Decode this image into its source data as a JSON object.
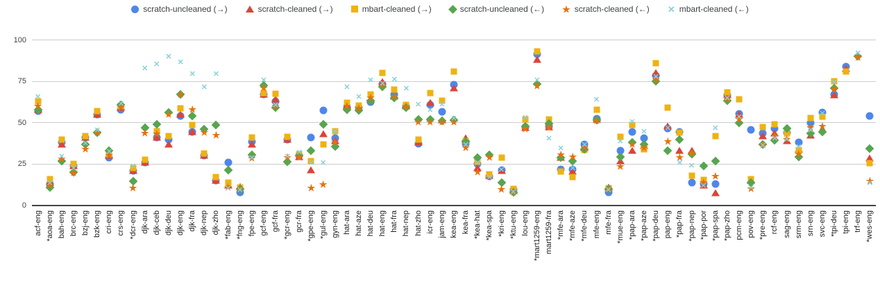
{
  "chart_data": {
    "type": "scatter",
    "title": "",
    "xlabel": "",
    "ylabel": "",
    "ylim": [
      0,
      100
    ],
    "yticks": [
      0,
      25,
      50,
      75,
      100
    ],
    "grid": true,
    "legend_position": "top",
    "categories": [
      "acf-eng",
      "*aoa-eng",
      "bah-eng",
      "brc-eng",
      "bzj-eng",
      "bzk-eng",
      "cri-eng",
      "crs-eng",
      "*dcr-eng",
      "djk-ara",
      "djk-ceb",
      "djk-deu",
      "djk-eng",
      "djk-fra",
      "djk-nep",
      "djk-zho",
      "*fab-eng",
      "*fng-eng",
      "fpe-eng",
      "gcf-eng",
      "gcf-fra",
      "*gcr-eng",
      "gcr-fra",
      "*gpe-eng",
      "*gul-eng",
      "gyn-eng",
      "hat-ara",
      "hat-aze",
      "hat-deu",
      "hat-eng",
      "hat-fra",
      "hat-nep",
      "hat-zho",
      "icr-eng",
      "jam-eng",
      "kea-eng",
      "kea-fra",
      "*kea-hat",
      "*kea-spa",
      "*kri-eng",
      "*ktu-eng",
      "lou-eng",
      "*mart1259-eng",
      "mart1259-fra",
      "*mfe-ara",
      "*mfe-aze",
      "*mfe-deu",
      "mfe-eng",
      "mfe-fra",
      "*mue-eng",
      "*pap-ara",
      "*pap-aze",
      "*pap-deu",
      "pap-eng",
      "*pap-fra",
      "*pap-nep",
      "*pap-por",
      "*pap-spa",
      "*pap-zho",
      "pcm-eng",
      "pov-eng",
      "*pre-eng",
      "rcf-eng",
      "sag-eng",
      "srm-eng",
      "srn-eng",
      "svc-eng",
      "*tpi-deu",
      "tpi-eng",
      "trf-eng",
      "*wes-eng"
    ],
    "series": [
      {
        "name": "scratch-uncleaned (→)",
        "marker": "circle",
        "color": "#4f86ec",
        "values": [
          57,
          13,
          38,
          24,
          41,
          55,
          29,
          58,
          21,
          26,
          41,
          40,
          54,
          44.5,
          30,
          15,
          26,
          8,
          38.5,
          67,
          63,
          40,
          30,
          41,
          57.5,
          40.5,
          59,
          59,
          62.5,
          73.5,
          67,
          60,
          37.5,
          61,
          56.5,
          73,
          37.5,
          25,
          17.5,
          21.5,
          9.5,
          47.5,
          91.5,
          48,
          22,
          22,
          37,
          52.5,
          8,
          33,
          44.5,
          40.5,
          78.5,
          46.5,
          44.5,
          14,
          13,
          13,
          66.5,
          55.5,
          45.5,
          43.5,
          46.5,
          44,
          38,
          50,
          56,
          67,
          84,
          null,
          54
        ]
      },
      {
        "name": "scratch-cleaned (→)",
        "marker": "triangle",
        "color": "#dc4437",
        "values": [
          58,
          14,
          37,
          24,
          41,
          55,
          30,
          59,
          21,
          26,
          41,
          37,
          55,
          44.5,
          30,
          15,
          12,
          11.5,
          37,
          67,
          64,
          40,
          29.5,
          21.5,
          43,
          39,
          60.5,
          59,
          64,
          74.5,
          66,
          60,
          38,
          62,
          51.5,
          71,
          40.5,
          22.5,
          18,
          21,
          9,
          47,
          88,
          47.5,
          29,
          20.5,
          35,
          52,
          11,
          27,
          33,
          36,
          80,
          48,
          33,
          33,
          12,
          7.5,
          67,
          55,
          15,
          42,
          43.5,
          39,
          34,
          42.5,
          46,
          66.5,
          82.5,
          null,
          28.5
        ]
      },
      {
        "name": "mbart-cleaned (→)",
        "marker": "square",
        "color": "#efb211",
        "values": [
          63,
          16,
          40,
          25,
          42,
          57,
          31,
          60,
          22.5,
          27.5,
          45,
          42,
          58.5,
          48.5,
          31.5,
          17,
          14,
          11,
          41,
          68,
          67.5,
          41.5,
          31,
          27,
          37,
          45,
          62,
          60.5,
          67,
          80,
          70,
          61,
          40,
          68,
          63.5,
          81,
          39,
          26.5,
          19,
          29,
          10,
          52,
          93,
          52,
          20.5,
          17,
          33.5,
          58,
          10.5,
          41.5,
          48.5,
          34,
          86,
          59,
          44,
          18,
          15.5,
          42,
          68.5,
          64,
          16,
          47.5,
          49,
          43.5,
          33.5,
          53,
          53.5,
          75,
          81,
          null,
          25.5
        ]
      },
      {
        "name": "scratch-uncleaned (←)",
        "marker": "diamond",
        "color": "#57a550",
        "values": [
          58,
          11,
          27,
          20,
          37,
          44,
          33,
          61,
          14.5,
          47,
          49,
          56,
          67,
          54,
          46,
          48.5,
          21.5,
          10,
          30.5,
          72.5,
          59,
          26.5,
          30,
          33,
          49,
          35.5,
          58,
          57.5,
          63.5,
          71.5,
          65,
          59,
          52,
          52,
          51,
          51.5,
          38.5,
          29,
          30.5,
          14,
          8,
          48,
          73.5,
          49.5,
          29,
          27,
          34,
          51.5,
          10,
          29.5,
          38,
          37,
          75,
          33,
          40,
          31,
          24,
          27,
          63.5,
          50,
          14,
          37,
          39.5,
          46.5,
          29.5,
          43.5,
          44.5,
          71,
          null,
          90,
          34.5
        ]
      },
      {
        "name": "scratch-cleaned (←)",
        "marker": "star",
        "color": "#e8700a",
        "values": [
          60,
          12,
          28,
          19.5,
          34,
          44,
          30,
          59,
          10.5,
          43.5,
          43,
          55,
          67,
          58,
          44,
          42.5,
          11,
          9.5,
          28.5,
          71,
          60,
          29,
          29,
          10.5,
          12.5,
          38,
          60,
          58.5,
          65,
          73,
          66,
          59.5,
          50.5,
          50.5,
          50.5,
          50.5,
          35,
          20,
          29,
          9.5,
          8,
          46,
          72,
          47,
          30.5,
          29.5,
          35,
          51,
          9.5,
          23.5,
          37,
          35,
          76,
          38.5,
          29,
          31.5,
          14,
          17.5,
          64,
          52,
          10,
          36.5,
          42,
          40,
          31,
          47,
          48,
          70.5,
          null,
          89.5,
          14.5
        ]
      },
      {
        "name": "mbart-cleaned (←)",
        "marker": "x",
        "color": "#8bd0d9",
        "values": [
          65,
          13,
          29,
          22,
          37,
          45,
          32,
          61,
          23,
          82,
          84.5,
          89.5,
          86,
          79,
          71,
          79,
          9.5,
          9,
          28,
          75,
          60,
          29,
          31.5,
          25,
          25,
          44,
          71,
          65,
          75,
          73,
          75.5,
          70,
          60.5,
          57,
          60.5,
          52,
          36,
          25,
          16.5,
          21,
          7.5,
          52.5,
          75,
          40,
          34,
          22,
          36,
          63.5,
          9,
          38,
          50,
          44,
          77,
          46,
          25,
          23.5,
          11.5,
          46,
          64,
          53,
          10,
          35.5,
          40,
          39.5,
          35,
          45,
          55,
          74,
          null,
          91.5,
          13
        ]
      }
    ]
  },
  "axes": {
    "y_tick_labels": [
      "0",
      "25",
      "50",
      "75",
      "100"
    ]
  }
}
